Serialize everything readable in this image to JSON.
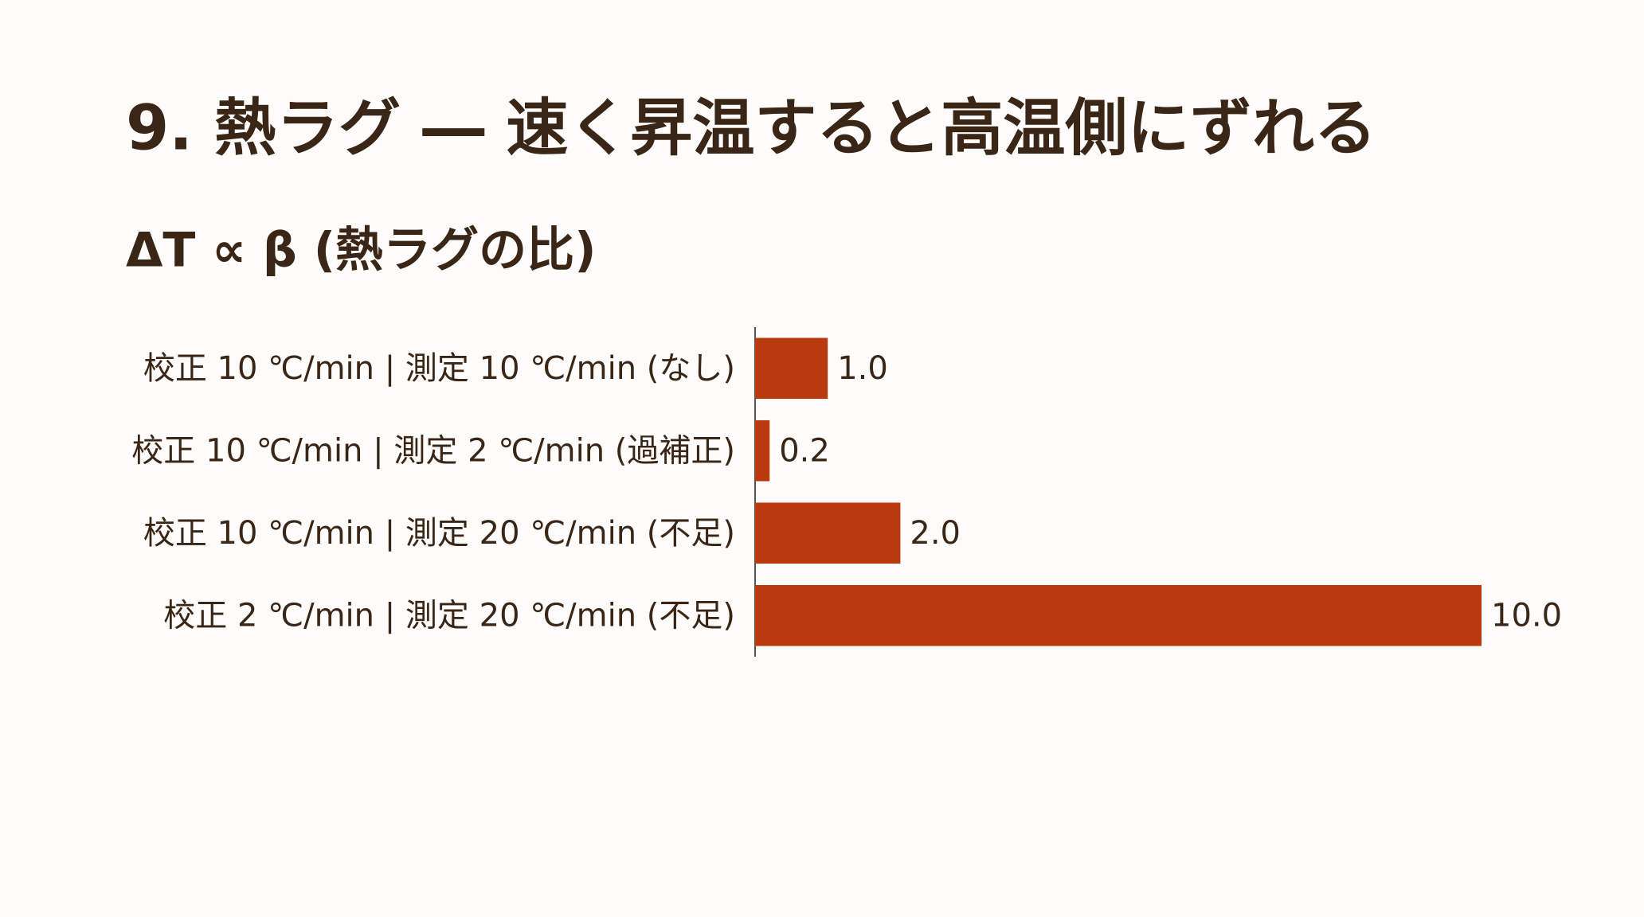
{
  "chart_data": {
    "type": "bar",
    "orientation": "horizontal",
    "title": "9. 熱ラグ ― 速く昇温すると高温側にずれる",
    "subtitle": "ΔT ∝ β (熱ラグの比)",
    "categories": [
      "校正 10 ℃/min | 測定 10 ℃/min (なし)",
      "校正 10 ℃/min | 測定 2 ℃/min (過補正)",
      "校正 10 ℃/min | 測定 20 ℃/min (不足)",
      "校正 2 ℃/min | 測定 20 ℃/min (不足)"
    ],
    "values": [
      1,
      0.2,
      2,
      10
    ],
    "value_labels": [
      "1.0",
      "0.2",
      "2.0",
      "10.0"
    ],
    "color": "#b83a0e"
  }
}
